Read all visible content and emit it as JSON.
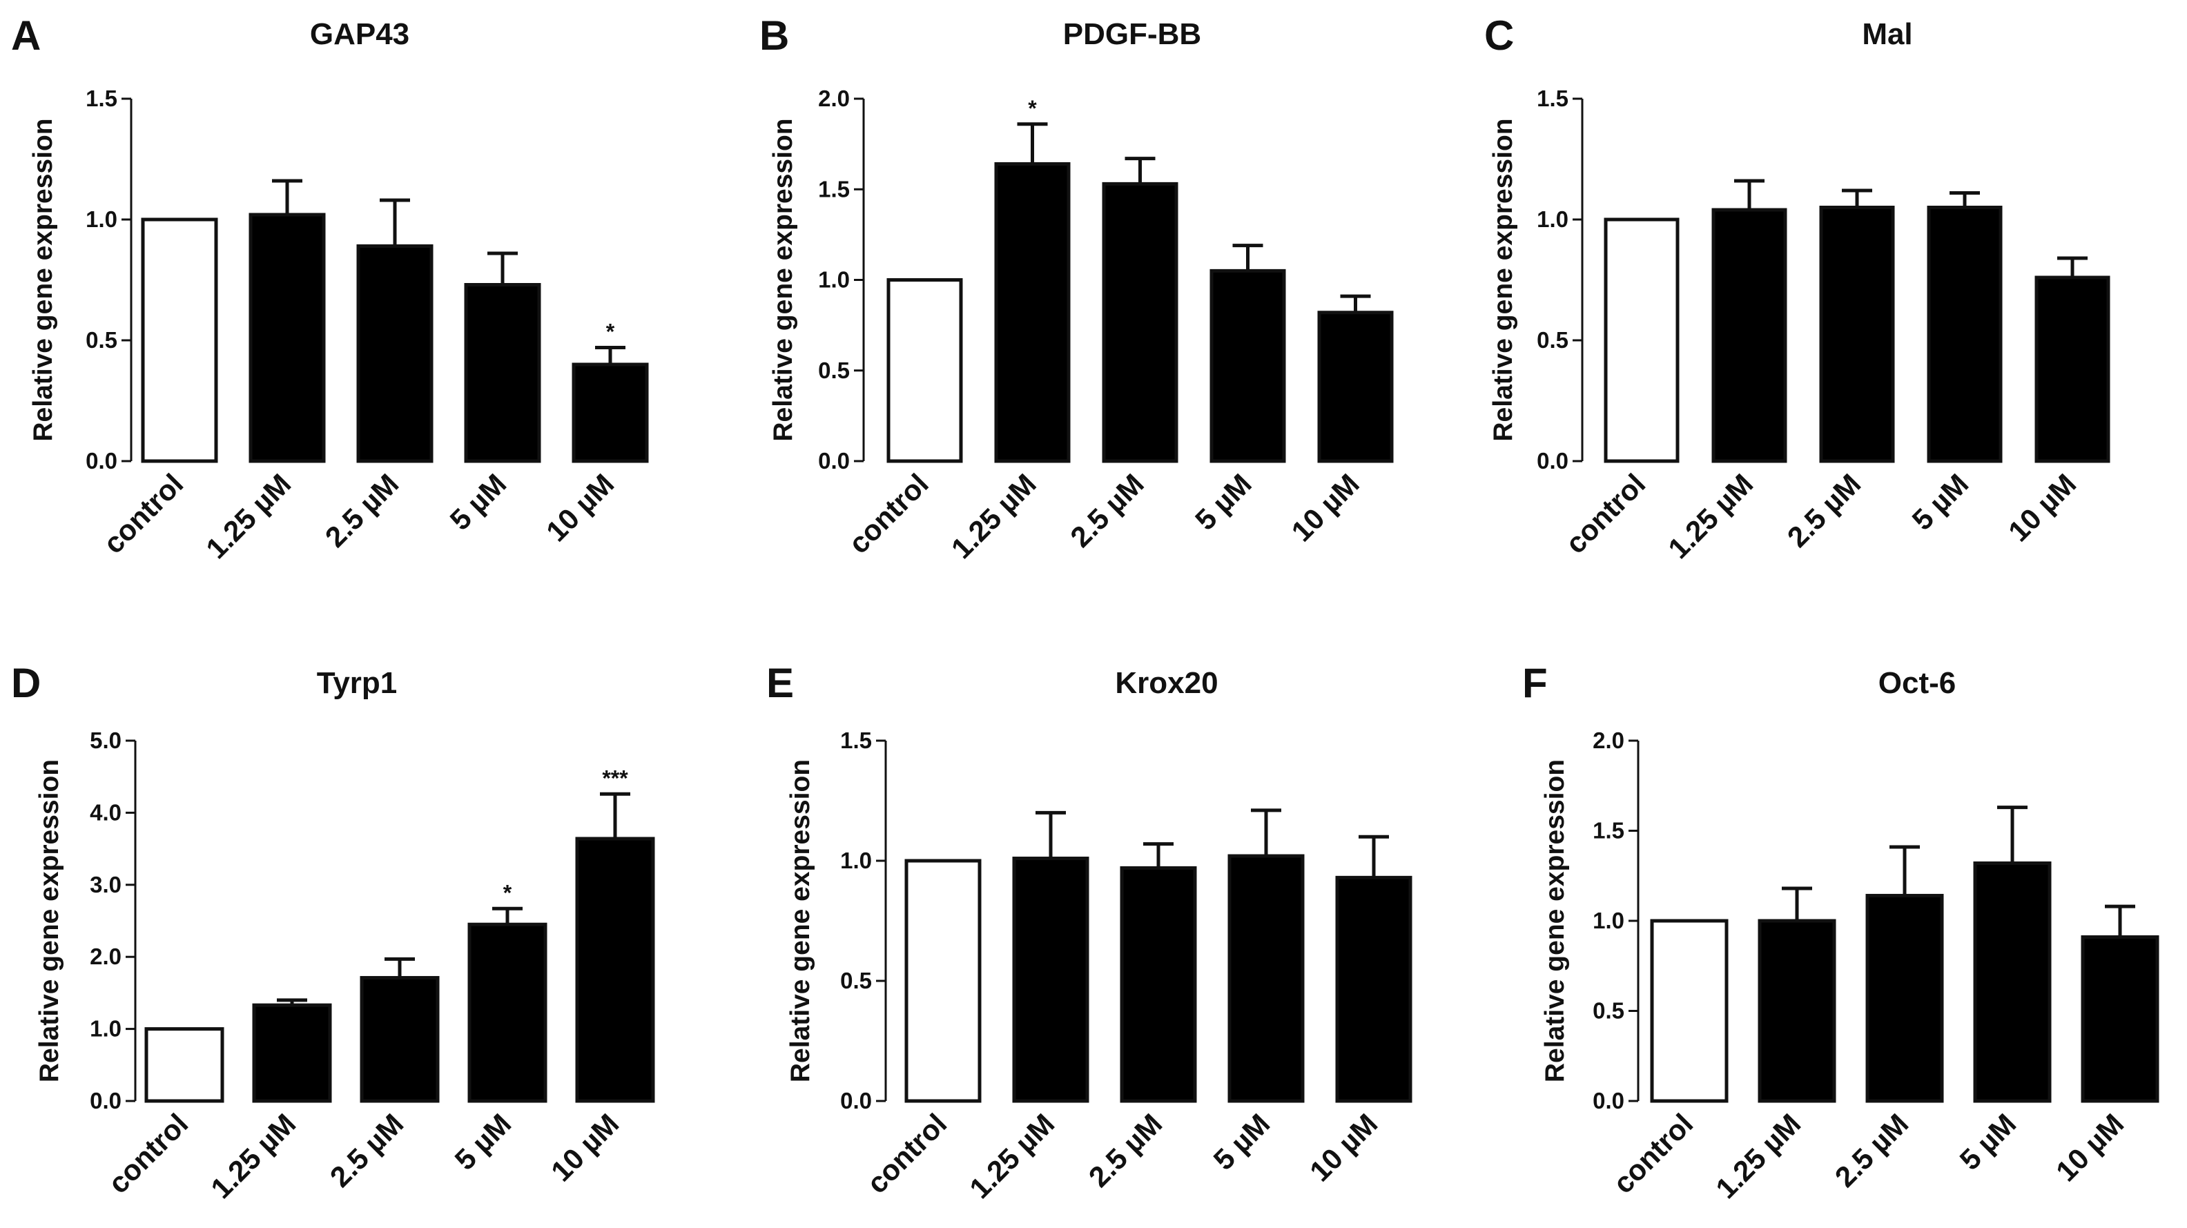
{
  "chart_data": [
    {
      "panel": "A",
      "type": "bar",
      "title": "GAP43",
      "ylabel": "Relative gene expression",
      "categories": [
        "control",
        "1.25 µM",
        "2.5 µM",
        "5 µM",
        "10 µM"
      ],
      "values": [
        1.0,
        1.02,
        0.89,
        0.73,
        0.4
      ],
      "errors": [
        0,
        0.14,
        0.19,
        0.13,
        0.07
      ],
      "significance": [
        "",
        "",
        "",
        "",
        "*"
      ],
      "ylim": [
        0,
        1.5
      ],
      "yticks": [
        "0.0",
        "0.5",
        "1.0",
        "1.5"
      ]
    },
    {
      "panel": "B",
      "type": "bar",
      "title": "PDGF-BB",
      "ylabel": "Relative gene expression",
      "categories": [
        "control",
        "1.25 µM",
        "2.5 µM",
        "5 µM",
        "10 µM"
      ],
      "values": [
        1.0,
        1.64,
        1.53,
        1.05,
        0.82
      ],
      "errors": [
        0,
        0.22,
        0.14,
        0.14,
        0.09
      ],
      "significance": [
        "",
        "*",
        "",
        "",
        ""
      ],
      "ylim": [
        0,
        2.0
      ],
      "yticks": [
        "0.0",
        "0.5",
        "1.0",
        "1.5",
        "2.0"
      ]
    },
    {
      "panel": "C",
      "type": "bar",
      "title": "Mal",
      "ylabel": "Relative gene expression",
      "categories": [
        "control",
        "1.25 µM",
        "2.5 µM",
        "5 µM",
        "10 µM"
      ],
      "values": [
        1.0,
        1.04,
        1.05,
        1.05,
        0.76
      ],
      "errors": [
        0,
        0.12,
        0.07,
        0.06,
        0.08
      ],
      "significance": [
        "",
        "",
        "",
        "",
        ""
      ],
      "ylim": [
        0,
        1.5
      ],
      "yticks": [
        "0.0",
        "0.5",
        "1.0",
        "1.5"
      ]
    },
    {
      "panel": "D",
      "type": "bar",
      "title": "Tyrp1",
      "ylabel": "Relative gene expression",
      "categories": [
        "control",
        "1.25 µM",
        "2.5 µM",
        "5 µM",
        "10 µM"
      ],
      "values": [
        1.0,
        1.33,
        1.71,
        2.45,
        3.64
      ],
      "errors": [
        0,
        0.07,
        0.26,
        0.22,
        0.62
      ],
      "significance": [
        "",
        "",
        "",
        "*",
        "***"
      ],
      "ylim": [
        0,
        5.0
      ],
      "yticks": [
        "0.0",
        "1.0",
        "2.0",
        "3.0",
        "4.0",
        "5.0"
      ]
    },
    {
      "panel": "E",
      "type": "bar",
      "title": "Krox20",
      "ylabel": "Relative gene expression",
      "categories": [
        "control",
        "1.25 µM",
        "2.5 µM",
        "5 µM",
        "10 µM"
      ],
      "values": [
        1.0,
        1.01,
        0.97,
        1.02,
        0.93
      ],
      "errors": [
        0,
        0.19,
        0.1,
        0.19,
        0.17
      ],
      "significance": [
        "",
        "",
        "",
        "",
        ""
      ],
      "ylim": [
        0,
        1.5
      ],
      "yticks": [
        "0.0",
        "0.5",
        "1.0",
        "1.5"
      ]
    },
    {
      "panel": "F",
      "type": "bar",
      "title": "Oct-6",
      "ylabel": "Relative gene expression",
      "categories": [
        "control",
        "1.25 µM",
        "2.5 µM",
        "5 µM",
        "10 µM"
      ],
      "values": [
        1.0,
        1.0,
        1.14,
        1.32,
        0.91
      ],
      "errors": [
        0,
        0.18,
        0.27,
        0.31,
        0.17
      ],
      "significance": [
        "",
        "",
        "",
        "",
        ""
      ],
      "ylim": [
        0,
        2.0
      ],
      "yticks": [
        "0.0",
        "0.5",
        "1.0",
        "1.5",
        "2.0"
      ]
    }
  ],
  "colors": {
    "control_fill": "#ffffff",
    "treatment_fill": "#000000",
    "stroke": "#111111"
  }
}
